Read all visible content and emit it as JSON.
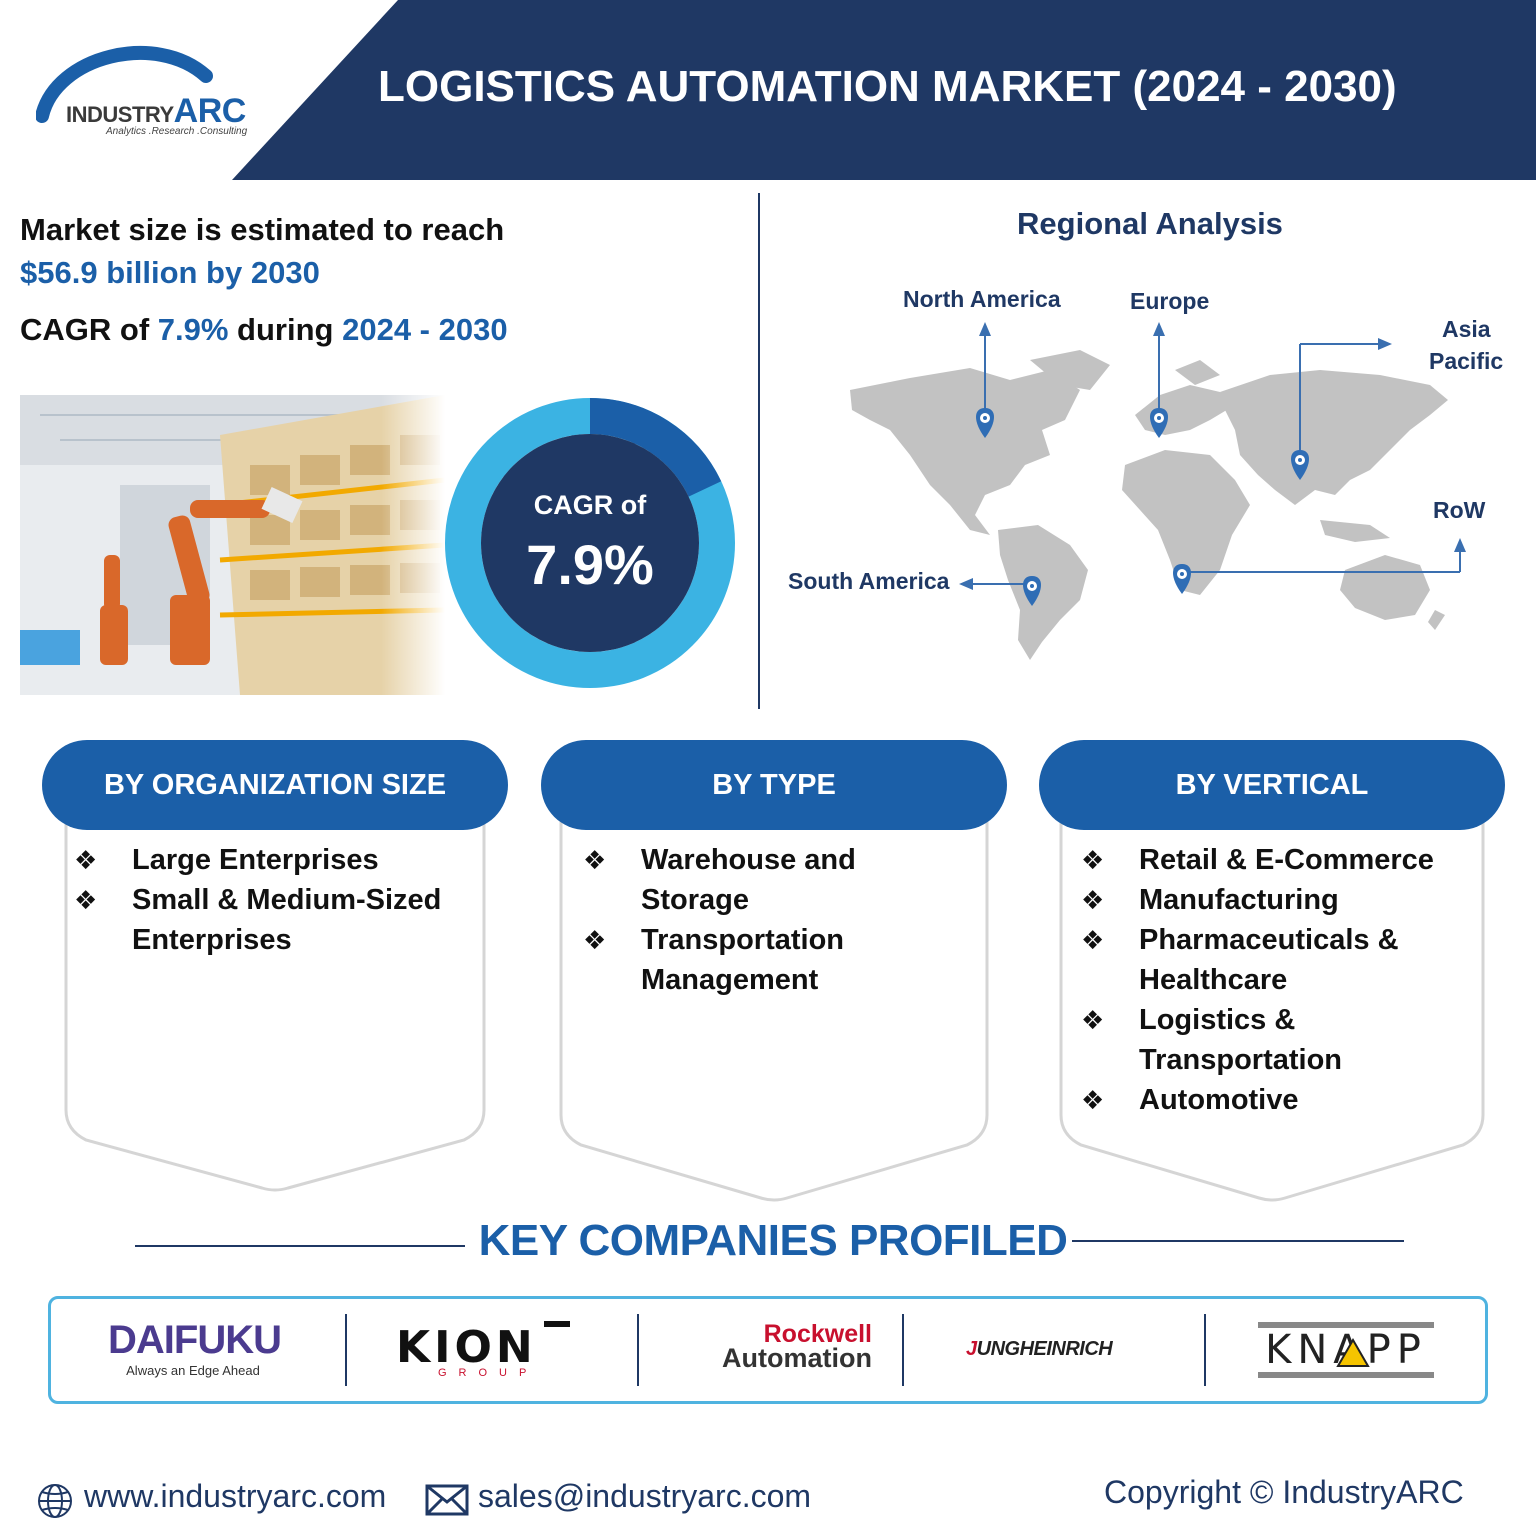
{
  "header": {
    "title": "LOGISTICS AUTOMATION MARKET (2024 - 2030)",
    "logo": {
      "brand_left": "INDUSTRY",
      "brand_right": "ARC",
      "tagline": "Analytics .Research .Consulting"
    }
  },
  "stats": {
    "line1": "Market size is estimated to reach",
    "line2": "$56.9 billion by 2030",
    "cagr_prefix": "CAGR of ",
    "cagr_value": "7.9%",
    "cagr_mid": " during ",
    "cagr_period": "2024 - 2030"
  },
  "donut": {
    "label": "CAGR of",
    "value": "7.9%",
    "highlight_fraction": 0.18
  },
  "regional": {
    "title": "Regional Analysis",
    "regions": {
      "north_america": "North America",
      "europe": "Europe",
      "asia_line1": "Asia",
      "asia_line2": "Pacific",
      "row": "RoW",
      "south_america": "South America"
    }
  },
  "segments": {
    "organization": {
      "title": "BY ORGANIZATION SIZE",
      "items": [
        "Large Enterprises",
        "Small & Medium-Sized Enterprises"
      ]
    },
    "type": {
      "title": "BY TYPE",
      "items": [
        "Warehouse and Storage",
        "Transportation Management"
      ]
    },
    "vertical": {
      "title": "BY VERTICAL",
      "items": [
        "Retail & E-Commerce",
        "Manufacturing",
        "Pharmaceuticals & Healthcare",
        "Logistics & Transportation",
        "Automotive"
      ]
    }
  },
  "companies": {
    "title": "KEY COMPANIES PROFILED",
    "daifuku": {
      "name": "DAIFUKU",
      "tagline": "Always an Edge Ahead"
    },
    "kion": {
      "name": "KION",
      "sub": "GROUP"
    },
    "rockwell": {
      "line1": "Rockwell",
      "line2": "Automation"
    },
    "jungheinrich": {
      "first": "J",
      "rest": "UNGHEINRICH"
    },
    "knapp": {
      "name": "KNAPP"
    }
  },
  "footer": {
    "website": "www.industryarc.com",
    "email": "sales@industryarc.com",
    "copyright": "Copyright © IndustryARC"
  },
  "colors": {
    "navy": "#1f3864",
    "blue": "#1b5fa8",
    "light_blue": "#3bb3e3",
    "map_gray": "#c2c2c2"
  }
}
